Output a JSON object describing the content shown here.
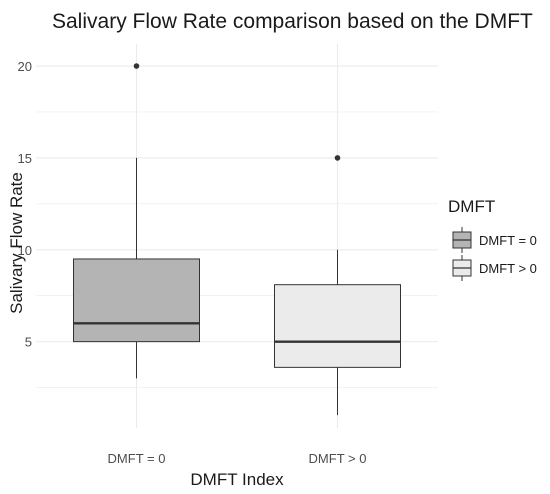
{
  "chart_data": {
    "type": "boxplot",
    "title": "Salivary Flow Rate comparison based on the DMFT",
    "xlabel": "DMFT Index",
    "ylabel": "Salivary Flow Rate",
    "ylim": [
      0.3,
      21.2
    ],
    "yticks": [
      5,
      10,
      15,
      20
    ],
    "grid": true,
    "categories": [
      "DMFT = 0",
      "DMFT > 0"
    ],
    "boxes": [
      {
        "category": "DMFT = 0",
        "whisker_low": 3,
        "q1": 5,
        "median": 6,
        "q3": 9.5,
        "whisker_high": 15,
        "outliers": [
          20
        ],
        "fill": "#b4b4b4"
      },
      {
        "category": "DMFT > 0",
        "whisker_low": 1,
        "q1": 3.6,
        "median": 5,
        "q3": 8.1,
        "whisker_high": 10,
        "outliers": [
          15
        ],
        "fill": "#ebebeb"
      }
    ],
    "legend": {
      "title": "DMFT",
      "position": "right",
      "items": [
        {
          "label": "DMFT = 0",
          "fill": "#b4b4b4"
        },
        {
          "label": "DMFT > 0",
          "fill": "#ebebeb"
        }
      ]
    },
    "colors": {
      "grid": "#ebebeb",
      "line": "#333333",
      "tick_text": "#4d4d4d"
    }
  }
}
